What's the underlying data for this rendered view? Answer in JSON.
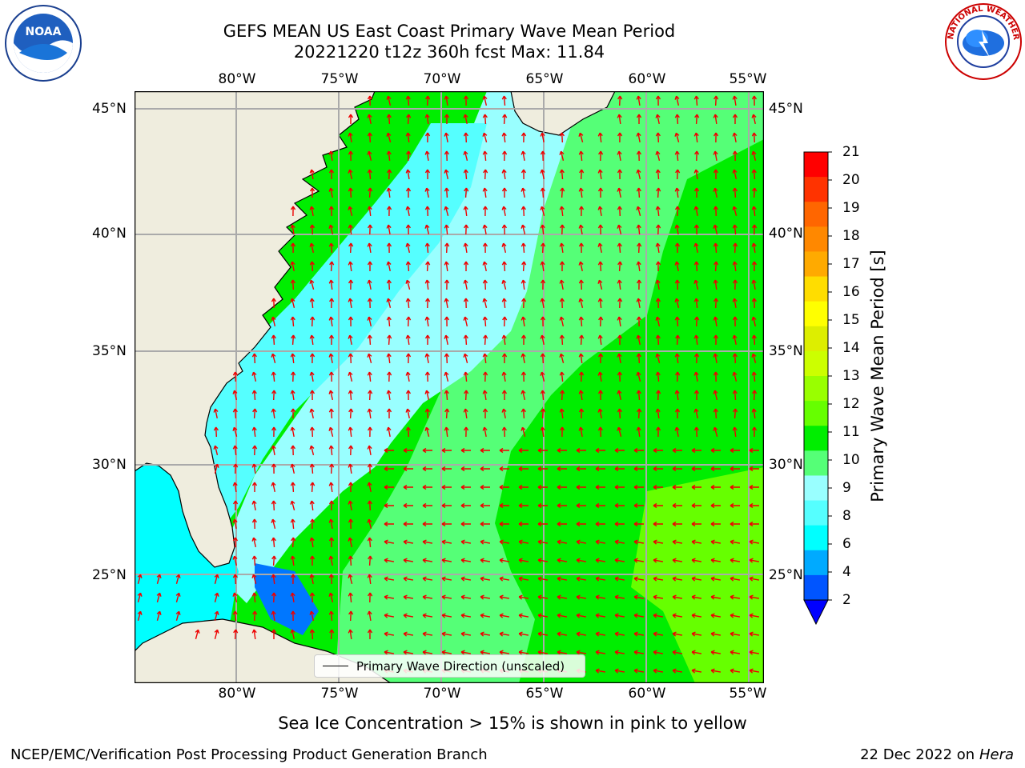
{
  "title_line1": "GEFS MEAN US East Coast Primary Wave Mean Period",
  "title_line2": "20221220 t12z 360h fcst   Max: 11.84",
  "lon_ticks": [
    "80°W",
    "75°W",
    "70°W",
    "65°W",
    "60°W",
    "55°W"
  ],
  "lat_ticks": [
    "45°N",
    "40°N",
    "35°N",
    "30°N",
    "25°N"
  ],
  "legend_label": "Primary Wave Direction (unscaled)",
  "colorbar": {
    "label": "Primary Wave Mean Period [s]",
    "ticks": [
      "21",
      "20",
      "19",
      "18",
      "17",
      "16",
      "15",
      "14",
      "13",
      "12",
      "11",
      "10",
      "9",
      "8",
      "6",
      "4",
      "2"
    ],
    "colors": [
      "#ff0000",
      "#ff3300",
      "#ff6600",
      "#ff8800",
      "#ffaa00",
      "#ffdd00",
      "#ffff00",
      "#ddee00",
      "#ccff00",
      "#99ff00",
      "#66ff00",
      "#00ee00",
      "#55ff77",
      "#99ffff",
      "#55ffff",
      "#00ffff",
      "#00aaff",
      "#0055ff"
    ],
    "extend_color": "#0000ff"
  },
  "caption": "Sea Ice Concentration > 15% is shown in pink to yellow",
  "footer_left": "NCEP/EMC/Verification Post Processing Product Generation Branch",
  "footer_date": "22 Dec 2022 on",
  "footer_host": "Hera",
  "logo_left_text": "NOAA",
  "logo_right_text": "NATIONAL WEATHER SERVICE"
}
